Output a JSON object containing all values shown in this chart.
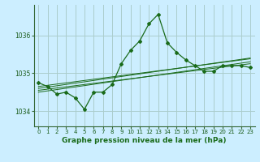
{
  "title": "Graphe pression niveau de la mer (hPa)",
  "bg_color": "#cceeff",
  "grid_color": "#aacccc",
  "line_color": "#1a6b1a",
  "marker_color": "#1a6b1a",
  "xlim": [
    -0.5,
    23.5
  ],
  "ylim": [
    1033.6,
    1036.8
  ],
  "yticks": [
    1034,
    1035,
    1036
  ],
  "xticks": [
    0,
    1,
    2,
    3,
    4,
    5,
    6,
    7,
    8,
    9,
    10,
    11,
    12,
    13,
    14,
    15,
    16,
    17,
    18,
    19,
    20,
    21,
    22,
    23
  ],
  "main_x": [
    0,
    1,
    2,
    3,
    4,
    5,
    6,
    7,
    8,
    9,
    10,
    11,
    12,
    13,
    14,
    15,
    16,
    17,
    18,
    19,
    20,
    21,
    22,
    23
  ],
  "main_y": [
    1034.75,
    1034.65,
    1034.45,
    1034.5,
    1034.35,
    1034.05,
    1034.5,
    1034.5,
    1034.7,
    1035.25,
    1035.6,
    1035.85,
    1036.3,
    1036.55,
    1035.8,
    1035.55,
    1035.35,
    1035.2,
    1035.05,
    1035.05,
    1035.2,
    1035.2,
    1035.2,
    1035.15
  ],
  "line2_x": [
    0,
    23
  ],
  "line2_y": [
    1034.6,
    1035.4
  ],
  "line3_x": [
    0,
    23
  ],
  "line3_y": [
    1034.55,
    1035.25
  ],
  "line4_x": [
    0,
    23
  ],
  "line4_y": [
    1034.5,
    1035.3
  ],
  "line5_x": [
    0,
    23
  ],
  "line5_y": [
    1034.65,
    1035.38
  ]
}
